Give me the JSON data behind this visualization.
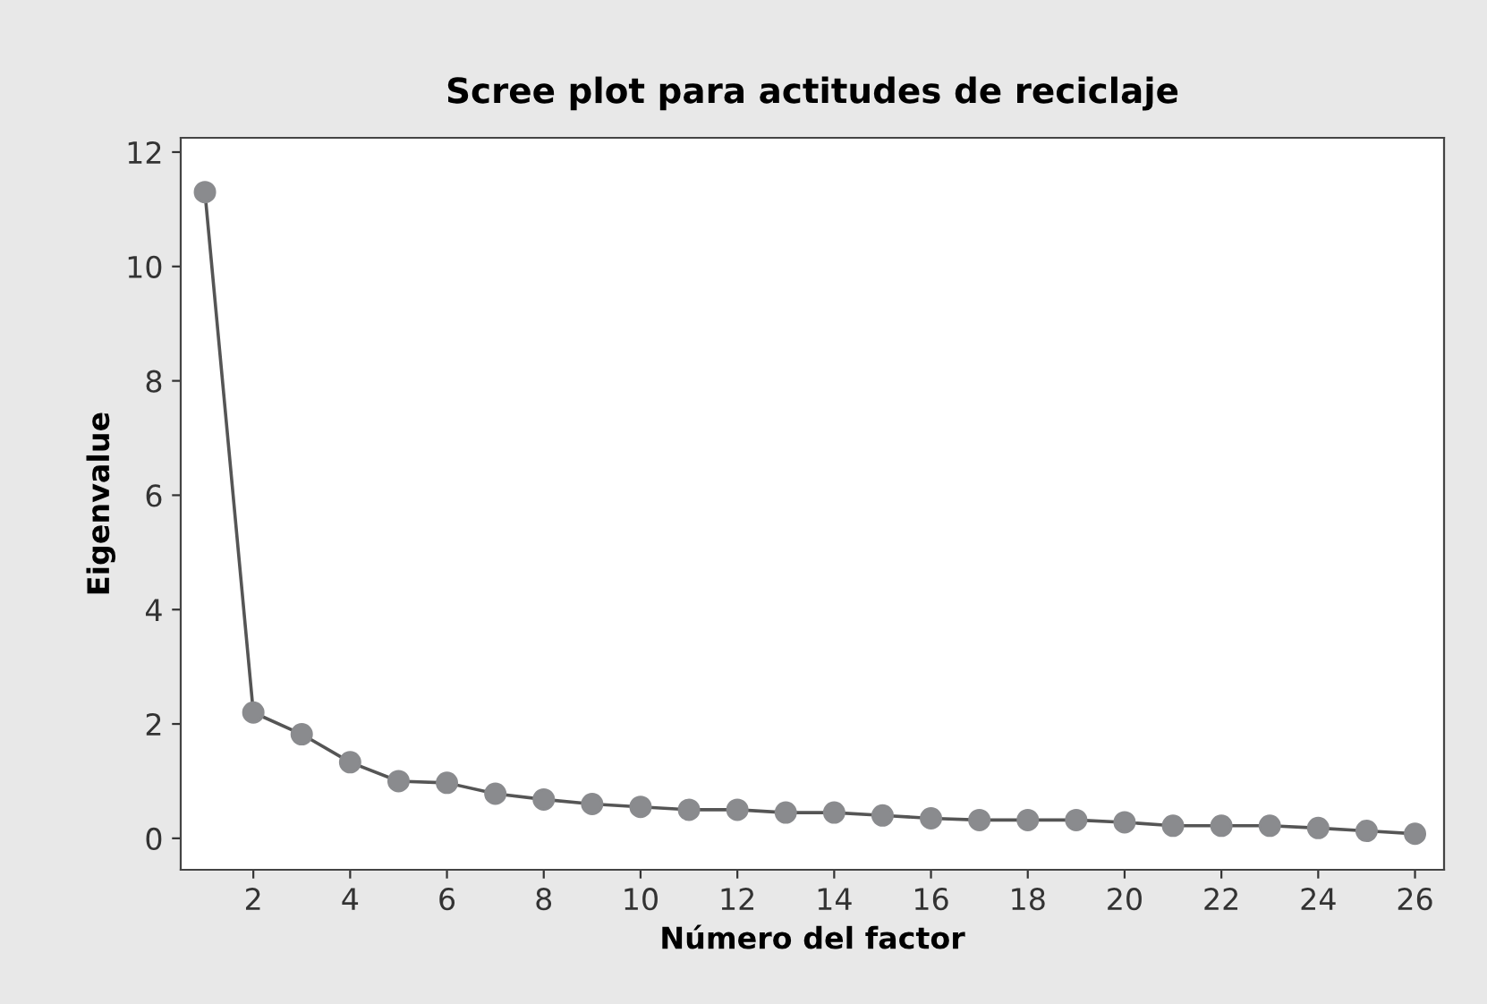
{
  "chart_data": {
    "type": "line",
    "title": "Scree plot para actitudes de reciclaje",
    "xlabel": "Número del factor",
    "ylabel": "Eigenvalue",
    "x": [
      1,
      2,
      3,
      4,
      5,
      6,
      7,
      8,
      9,
      10,
      11,
      12,
      13,
      14,
      15,
      16,
      17,
      18,
      19,
      20,
      21,
      22,
      23,
      24,
      25,
      26
    ],
    "series": [
      {
        "color": "#8a8b8e",
        "values": [
          11.3,
          2.2,
          1.82,
          1.33,
          1.0,
          0.97,
          0.78,
          0.68,
          0.6,
          0.55,
          0.5,
          0.5,
          0.45,
          0.45,
          0.4,
          0.35,
          0.32,
          0.32,
          0.32,
          0.28,
          0.22,
          0.22,
          0.22,
          0.18,
          0.13,
          0.08
        ]
      }
    ],
    "xlim": [
      0.5,
      26.6
    ],
    "xticks": [
      2,
      4,
      6,
      8,
      10,
      12,
      14,
      16,
      18,
      20,
      22,
      24,
      26
    ],
    "ylim": [
      -0.55,
      12.25
    ],
    "yticks": [
      0,
      2,
      4,
      6,
      8,
      10,
      12
    ],
    "marker": "circle",
    "line_style": "solid",
    "grid": false,
    "legend": false
  }
}
